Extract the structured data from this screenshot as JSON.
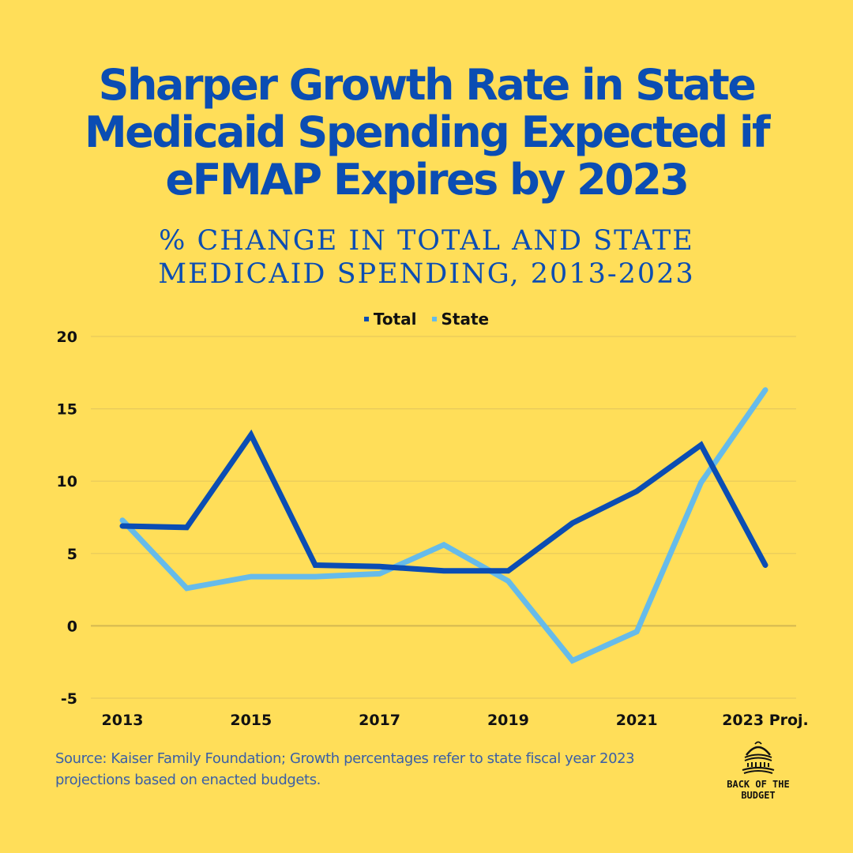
{
  "title_lines": [
    "Sharper Growth Rate in State",
    "Medicaid Spending Expected if",
    "eFMAP Expires by 2023"
  ],
  "subtitle_lines": [
    "% CHANGE IN TOTAL AND STATE",
    "MEDICAID SPENDING, 2013-2023"
  ],
  "source_note": "Source: Kaiser Family Foundation; Growth percentages refer to state fiscal year 2023 projections based on enacted budgets.",
  "logo": {
    "line1": "BACK OF THE",
    "line2": "BUDGET",
    "icon": "capitol-dome-icon"
  },
  "colors": {
    "background": "#FFDE59",
    "total": "#0B4DB3",
    "state": "#66BBEA",
    "title": "#0B4DB3",
    "grid": "#E0C45A"
  },
  "chart_data": {
    "type": "line",
    "title": "% Change in Total and State Medicaid Spending, 2013-2023",
    "xlabel": "",
    "ylabel": "",
    "x": [
      "2013",
      "2014",
      "2015",
      "2016",
      "2017",
      "2018",
      "2019",
      "2020",
      "2021",
      "2022",
      "2023 Proj."
    ],
    "x_tick_labels": [
      "2013",
      "2015",
      "2017",
      "2019",
      "2021",
      "2023 Proj."
    ],
    "y_ticks": [
      -5,
      0,
      5,
      10,
      15,
      20
    ],
    "ylim": [
      -5,
      20
    ],
    "grid": true,
    "legend_position": "top-center",
    "series": [
      {
        "name": "Total",
        "color": "#0B4DB3",
        "values": [
          6.9,
          6.8,
          13.2,
          4.2,
          4.1,
          3.8,
          3.8,
          7.1,
          9.3,
          12.5,
          4.2
        ]
      },
      {
        "name": "State",
        "color": "#66BBEA",
        "values": [
          7.3,
          2.6,
          3.4,
          3.4,
          3.6,
          5.6,
          3.1,
          -2.4,
          -0.4,
          9.9,
          16.3
        ]
      }
    ]
  }
}
